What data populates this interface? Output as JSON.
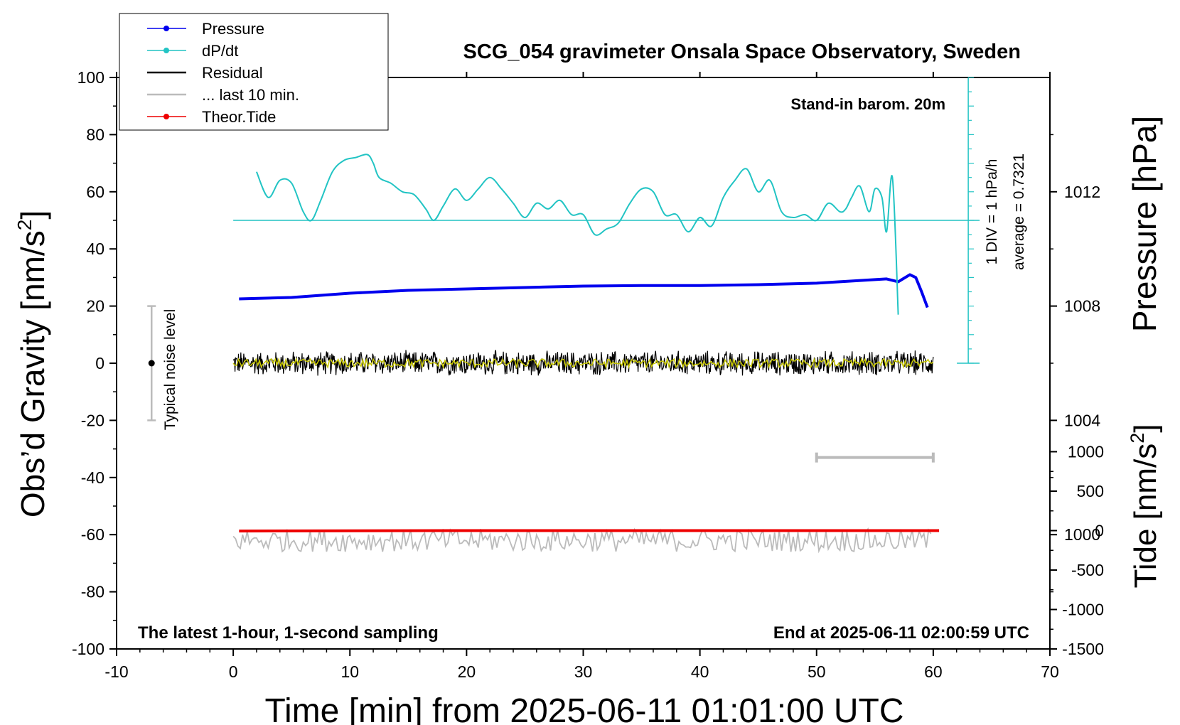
{
  "chart_data": {
    "type": "line",
    "title": "SCG_054 gravimeter Onsala Space Observatory, Sweden",
    "xlabel": "Time [min] from 2025-06-11 01:01:00 UTC",
    "ylabel_left": "Obs’d Gravity [nm/s",
    "ylabel_left_sup": "2",
    "ylabel_left_tail": "]",
    "ylabel_right_pressure": "Pressure [hPa]",
    "ylabel_right_tide": "Tide [nm/s",
    "ylabel_right_tide_sup": "2",
    "ylabel_right_tide_tail": "]",
    "xlim": [
      -10,
      70
    ],
    "ylim": [
      -100,
      100
    ],
    "x_ticks": [
      -10,
      0,
      10,
      20,
      30,
      40,
      50,
      60,
      70
    ],
    "x_tick_labels": [
      "-10",
      "0",
      "10",
      "20",
      "30",
      "40",
      "50",
      "60",
      "70"
    ],
    "y_ticks": [
      -100,
      -80,
      -60,
      -40,
      -20,
      0,
      20,
      40,
      60,
      80,
      100
    ],
    "y_tick_labels": [
      "-100",
      "-80",
      "-60",
      "-40",
      "-20",
      "0",
      "20",
      "40",
      "60",
      "80",
      "100"
    ],
    "pressure_axis": {
      "range_hpa": [
        996,
        1016
      ],
      "ticks": [
        1000,
        1004,
        1008,
        1012
      ],
      "tick_labels": [
        "1000",
        "1004",
        "1008",
        "1012"
      ]
    },
    "tide_axis": {
      "range": [
        -1500,
        1500
      ],
      "ticks": [
        -1500,
        -1000,
        -500,
        0,
        500,
        1000
      ],
      "tick_labels": [
        "-1500",
        "-1000",
        "-500",
        "0",
        "500",
        "1000"
      ]
    },
    "annotations": {
      "standin": "Stand-in barom. 20m",
      "latest": "The latest 1-hour, 1-second sampling",
      "end": "End at 2025-06-11 02:00:59 UTC",
      "div": "1 DIV = 1 hPa/h",
      "average": "average = 0.7321",
      "noise": "Typical noise level"
    },
    "legend": [
      {
        "label": "Pressure",
        "color": "#0000ee",
        "marker": true
      },
      {
        "label": "dP/dt",
        "color": "#22c4c4",
        "marker": true
      },
      {
        "label": "Residual",
        "color": "#000000",
        "marker": false
      },
      {
        "label": "... last 10 min.",
        "color": "#bbbbbb",
        "marker": false
      },
      {
        "label": "Theor.Tide",
        "color": "#ee0000",
        "marker": true
      }
    ],
    "series": [
      {
        "name": "Pressure",
        "axis": "pressure",
        "color": "#0000ee",
        "x": [
          0.5,
          5,
          10,
          15,
          20,
          25,
          30,
          35,
          40,
          45,
          50,
          54,
          56,
          57,
          58,
          58.5,
          59,
          59.5
        ],
        "y": [
          1008.25,
          1008.3,
          1008.45,
          1008.55,
          1008.6,
          1008.65,
          1008.7,
          1008.72,
          1008.72,
          1008.75,
          1008.8,
          1008.9,
          1008.95,
          1008.85,
          1009.1,
          1009.0,
          1008.5,
          1007.95
        ]
      },
      {
        "name": "dP/dt",
        "axis": "left",
        "color": "#22c4c4",
        "x": [
          2,
          3,
          4,
          5,
          6,
          6.7,
          7.5,
          8.5,
          9.5,
          10.5,
          11.5,
          12,
          12.5,
          13.5,
          14.5,
          15.5,
          16.5,
          17.2,
          18,
          19,
          20,
          21,
          22,
          23,
          24,
          25,
          26,
          27,
          28,
          29,
          30,
          31,
          32,
          33,
          34,
          35,
          36,
          37,
          38,
          39,
          40,
          41,
          42,
          43,
          44,
          45,
          46,
          47,
          48,
          49,
          50,
          51,
          52,
          52.5,
          53,
          53.7,
          54.5,
          55,
          55.6,
          56,
          56.5,
          57
        ],
        "y": [
          67,
          58,
          64,
          63,
          53,
          50,
          57,
          67,
          71,
          72,
          73,
          70,
          65,
          63,
          60,
          59,
          54,
          50,
          55,
          61,
          57,
          61,
          65,
          61,
          56,
          51,
          56,
          54,
          57,
          52,
          52,
          45,
          47,
          49,
          56,
          61,
          60,
          52,
          52,
          46,
          51,
          48,
          58,
          64,
          68,
          60,
          64,
          53,
          51,
          52,
          50,
          56,
          53,
          54,
          58,
          62,
          53,
          61,
          58,
          46,
          65,
          17
        ]
      },
      {
        "name": "Residual",
        "axis": "left",
        "color": "#000000",
        "x_range": [
          0,
          60
        ],
        "mean": 0,
        "amplitude": 4
      },
      {
        "name": "Smoothed residual",
        "axis": "left",
        "color": "#c8c800",
        "x_range": [
          0,
          60
        ],
        "mean": 0,
        "amplitude": 1.5
      },
      {
        "name": "... last 10 min.",
        "axis": "left",
        "color": "#bbbbbb",
        "x_range": [
          0,
          60
        ],
        "mean": -62,
        "amplitude": 4
      },
      {
        "name": "Theor.Tide",
        "axis": "tide",
        "color": "#ee0000",
        "x": [
          0.5,
          20,
          40,
          60.5
        ],
        "y": [
          -5,
          0,
          0,
          0
        ]
      }
    ],
    "noise_bar": {
      "x": -7,
      "center": 0,
      "low": -20,
      "high": 20
    },
    "ten_minute_bar": {
      "x_start": 50,
      "x_end": 60,
      "y": -33
    },
    "ddt_baseline": 50,
    "ddt_scale": {
      "x": 63,
      "y_from": 0,
      "y_to": 100,
      "minor_step": 5
    }
  }
}
